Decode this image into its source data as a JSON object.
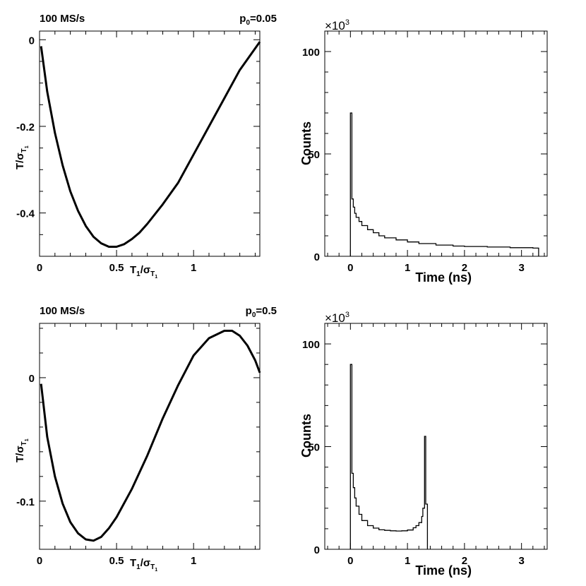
{
  "chart_data": [
    {
      "type": "line",
      "id": "tl",
      "annot_left": "100 MS/s",
      "annot_right_main": "p",
      "annot_right_sub": "0",
      "annot_right_rest": "=0.05",
      "xlabel_main": "T",
      "xlabel_sub1": "1",
      "xlabel_slash": "/σ",
      "xlabel_sub2": "T",
      "xlabel_sub3": "1",
      "ylabel_main": "T/σ",
      "ylabel_sub": "T",
      "ylabel_sub2": "1",
      "xlim": [
        0,
        1.43
      ],
      "ylim": [
        -0.5,
        0.02
      ],
      "xticks": [
        "0",
        "0.5",
        "1"
      ],
      "xtick_values": [
        0,
        0.5,
        1
      ],
      "yticks": [
        "0",
        "-0.2",
        "-0.4"
      ],
      "ytick_values": [
        0,
        -0.2,
        -0.4
      ],
      "x": [
        0.01,
        0.05,
        0.1,
        0.15,
        0.2,
        0.25,
        0.3,
        0.35,
        0.4,
        0.45,
        0.5,
        0.55,
        0.6,
        0.65,
        0.7,
        0.8,
        0.9,
        1.0,
        1.1,
        1.2,
        1.3,
        1.43
      ],
      "y": [
        -0.015,
        -0.12,
        -0.215,
        -0.29,
        -0.35,
        -0.395,
        -0.43,
        -0.455,
        -0.47,
        -0.478,
        -0.478,
        -0.472,
        -0.46,
        -0.445,
        -0.425,
        -0.38,
        -0.33,
        -0.265,
        -0.2,
        -0.135,
        -0.07,
        -0.005
      ]
    },
    {
      "type": "bar",
      "id": "tr",
      "exponent_main": "×10",
      "exponent_sup": "3",
      "xlabel": "Time (ns)",
      "ylabel": "Counts",
      "xlim": [
        -0.45,
        3.45
      ],
      "ylim": [
        0,
        110
      ],
      "xticks": [
        "0",
        "1",
        "2",
        "3"
      ],
      "xtick_values": [
        0,
        1,
        2,
        3
      ],
      "yticks": [
        "0",
        "50",
        "100"
      ],
      "ytick_values": [
        0,
        50,
        100
      ],
      "x": [
        0,
        0.025,
        0.05,
        0.075,
        0.1,
        0.15,
        0.2,
        0.3,
        0.4,
        0.5,
        0.6,
        0.8,
        1.0,
        1.2,
        1.5,
        1.8,
        2.0,
        2.4,
        2.8,
        3.2,
        3.3
      ],
      "y": [
        70,
        28,
        24,
        21,
        19,
        17,
        15,
        13,
        11.5,
        10,
        9,
        8,
        7,
        6.2,
        5.5,
        5,
        4.8,
        4.5,
        4.2,
        4.0,
        0
      ]
    },
    {
      "type": "line",
      "id": "bl",
      "annot_left": "100 MS/s",
      "annot_right_main": "p",
      "annot_right_sub": "0",
      "annot_right_rest": "=0.5",
      "xlabel_main": "T",
      "xlabel_sub1": "1",
      "xlabel_slash": "/σ",
      "xlabel_sub2": "T",
      "xlabel_sub3": "1",
      "ylabel_main": "T/σ",
      "ylabel_sub": "T",
      "ylabel_sub2": "1",
      "xlim": [
        0,
        1.43
      ],
      "ylim": [
        -0.139,
        0.044
      ],
      "xticks": [
        "0",
        "0.5",
        "1"
      ],
      "xtick_values": [
        0,
        0.5,
        1
      ],
      "yticks": [
        "0",
        "-0.1"
      ],
      "ytick_values": [
        0,
        -0.1
      ],
      "x": [
        0.01,
        0.05,
        0.1,
        0.15,
        0.2,
        0.25,
        0.3,
        0.35,
        0.4,
        0.45,
        0.5,
        0.6,
        0.7,
        0.8,
        0.9,
        1.0,
        1.1,
        1.2,
        1.25,
        1.3,
        1.35,
        1.4,
        1.43
      ],
      "y": [
        -0.005,
        -0.048,
        -0.08,
        -0.102,
        -0.117,
        -0.126,
        -0.131,
        -0.132,
        -0.129,
        -0.122,
        -0.113,
        -0.09,
        -0.063,
        -0.033,
        -0.006,
        0.018,
        0.032,
        0.038,
        0.038,
        0.034,
        0.026,
        0.014,
        0.004
      ]
    },
    {
      "type": "bar",
      "id": "br",
      "exponent_main": "×10",
      "exponent_sup": "3",
      "xlabel": "Time (ns)",
      "ylabel": "Counts",
      "xlim": [
        -0.45,
        3.45
      ],
      "ylim": [
        0,
        110
      ],
      "xticks": [
        "0",
        "1",
        "2",
        "3"
      ],
      "xtick_values": [
        0,
        1,
        2,
        3
      ],
      "yticks": [
        "0",
        "50",
        "100"
      ],
      "ytick_values": [
        0,
        50,
        100
      ],
      "x": [
        0,
        0.025,
        0.05,
        0.075,
        0.1,
        0.15,
        0.2,
        0.3,
        0.4,
        0.5,
        0.6,
        0.7,
        0.8,
        0.9,
        1.0,
        1.1,
        1.15,
        1.2,
        1.25,
        1.27,
        1.3,
        1.32,
        1.35
      ],
      "y": [
        90,
        37,
        30,
        25,
        21,
        17,
        14,
        11.5,
        10.3,
        9.5,
        9.2,
        9.0,
        8.9,
        9.0,
        9.4,
        10.5,
        11.5,
        13,
        16,
        20,
        55,
        22,
        0
      ]
    }
  ]
}
